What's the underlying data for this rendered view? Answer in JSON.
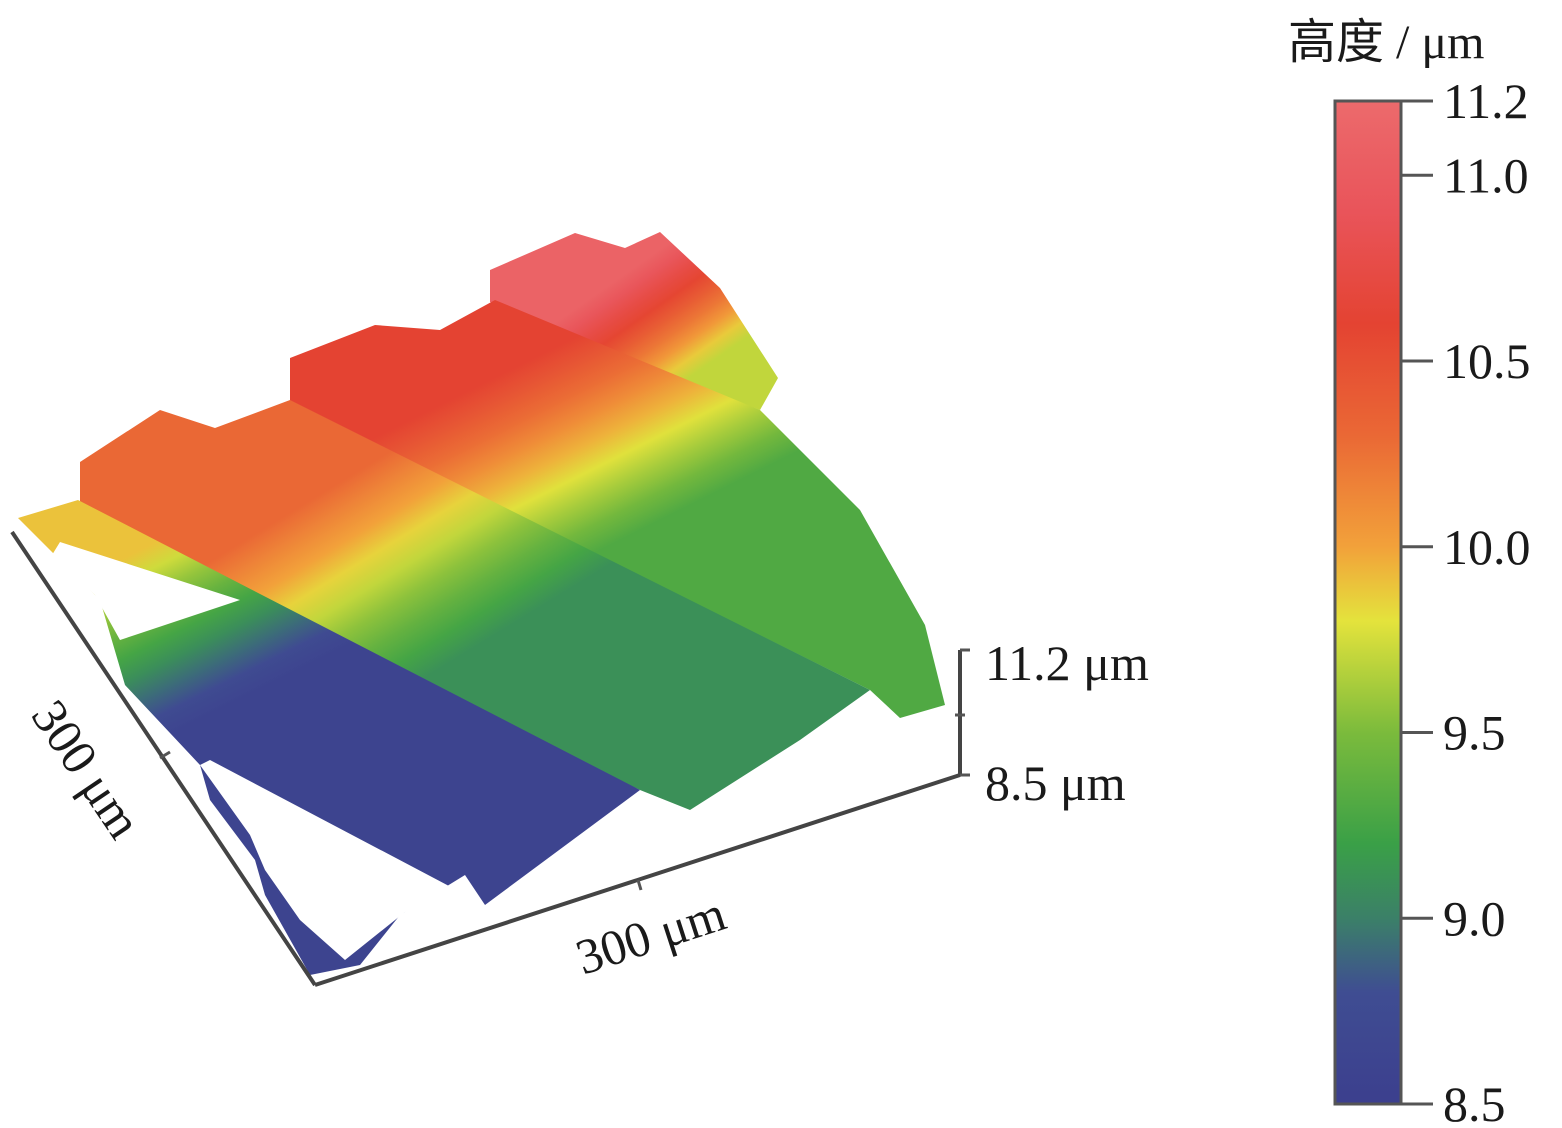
{
  "chart_data": {
    "type": "heatmap",
    "subtype": "3d-surface",
    "colorbar": {
      "title": "高度 / μm",
      "min": 8.5,
      "max": 11.2,
      "ticks": [
        {
          "value": 11.2,
          "label": "11.2"
        },
        {
          "value": 11.0,
          "label": "11.0"
        },
        {
          "value": 10.5,
          "label": "10.5"
        },
        {
          "value": 10.0,
          "label": "10.0"
        },
        {
          "value": 9.5,
          "label": "9.5"
        },
        {
          "value": 9.0,
          "label": "9.0"
        },
        {
          "value": 8.5,
          "label": "8.5"
        }
      ],
      "color_stops": [
        {
          "value": 8.5,
          "color": "#3c3f8e"
        },
        {
          "value": 8.8,
          "color": "#3f4d92"
        },
        {
          "value": 9.0,
          "color": "#3b8068"
        },
        {
          "value": 9.2,
          "color": "#3aa047"
        },
        {
          "value": 9.5,
          "color": "#7bbb3c"
        },
        {
          "value": 9.8,
          "color": "#e4e33c"
        },
        {
          "value": 10.0,
          "color": "#f2a13a"
        },
        {
          "value": 10.3,
          "color": "#ea6835"
        },
        {
          "value": 10.6,
          "color": "#e44332"
        },
        {
          "value": 10.9,
          "color": "#e9545a"
        },
        {
          "value": 11.2,
          "color": "#ec6a6c"
        }
      ]
    },
    "axes": {
      "x": {
        "label": "300 μm",
        "range": [
          0,
          300
        ]
      },
      "y": {
        "label": "300 μm",
        "range": [
          0,
          300
        ]
      },
      "z": {
        "range": [
          8.5,
          11.2
        ],
        "top_label": "11.2 μm",
        "bottom_label": "8.5 μm"
      }
    },
    "surface": {
      "pattern": "parallel ridges",
      "band_count": 4,
      "bands_low_to_high": [
        {
          "min": 8.6,
          "max": 9.9
        },
        {
          "min": 9.1,
          "max": 10.3
        },
        {
          "min": 9.3,
          "max": 10.6
        },
        {
          "min": 9.7,
          "max": 11.1
        }
      ]
    }
  }
}
